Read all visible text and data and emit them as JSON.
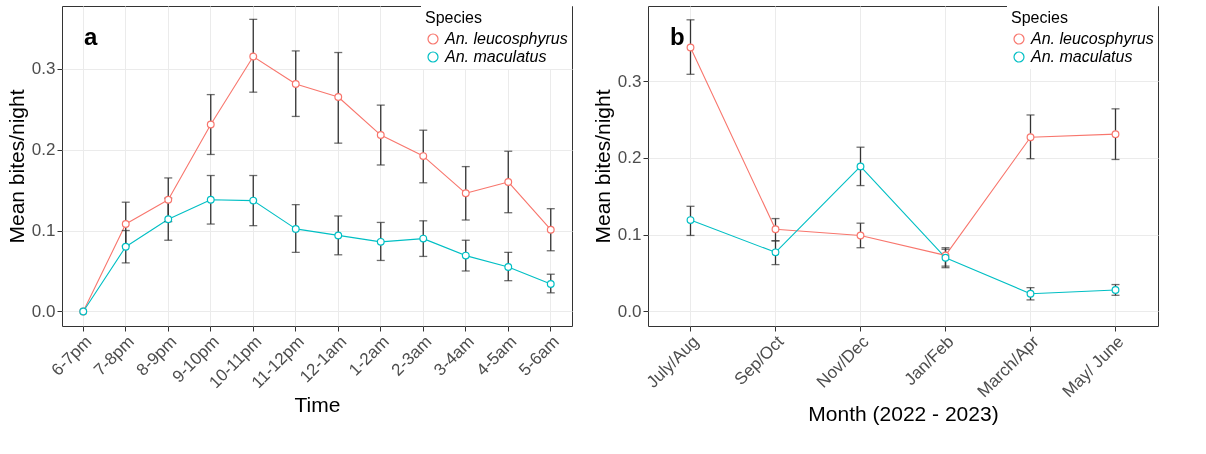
{
  "chart_data": [
    {
      "type": "line",
      "annotations": [
        "a"
      ],
      "xlabel": "Time",
      "ylabel": "Mean bites/night",
      "legend_title": "Species",
      "legend": "top right",
      "grid": true,
      "marker": "circle",
      "line_style": "solid",
      "categories": [
        "6-7pm",
        "7-8pm",
        "8-9pm",
        "9-10pm",
        "10-11pm",
        "11-12pm",
        "12-1am",
        "1-2am",
        "2-3am",
        "3-4am",
        "4-5am",
        "5-6am"
      ],
      "ylim": [
        -0.018,
        0.3775
      ],
      "yticks": [
        {
          "value": 0,
          "label": "0.0"
        },
        0.1,
        0.2,
        0.3
      ],
      "series": [
        {
          "name": "An. leucosphyrus",
          "color": "#f8766d",
          "values": [
            0,
            0.108,
            0.138,
            0.231,
            0.315,
            0.281,
            0.265,
            0.218,
            0.192,
            0.146,
            0.16,
            0.101
          ],
          "errors": [
            null,
            [
              0.081,
              0.135
            ],
            [
              0.111,
              0.165
            ],
            [
              0.194,
              0.268
            ],
            [
              0.271,
              0.361
            ],
            [
              0.241,
              0.322
            ],
            [
              0.208,
              0.32
            ],
            [
              0.181,
              0.255
            ],
            [
              0.159,
              0.224
            ],
            [
              0.113,
              0.179
            ],
            [
              0.122,
              0.198
            ],
            [
              0.075,
              0.127
            ]
          ]
        },
        {
          "name": "An. maculatus",
          "color": "#00bfc4",
          "values": [
            0,
            0.08,
            0.114,
            0.138,
            0.137,
            0.102,
            0.094,
            0.086,
            0.09,
            0.069,
            0.055,
            0.034
          ],
          "errors": [
            null,
            [
              0.06,
              0.1
            ],
            [
              0.088,
              0.14
            ],
            [
              0.108,
              0.168
            ],
            [
              0.106,
              0.168
            ],
            [
              0.073,
              0.132
            ],
            [
              0.07,
              0.118
            ],
            [
              0.063,
              0.11
            ],
            [
              0.068,
              0.112
            ],
            [
              0.05,
              0.088
            ],
            [
              0.038,
              0.073
            ],
            [
              0.023,
              0.046
            ]
          ]
        }
      ]
    },
    {
      "type": "line",
      "annotations": [
        "b"
      ],
      "xlabel": "Month (2022 - 2023)",
      "ylabel": "Mean bites/night",
      "legend_title": "Species",
      "legend": "top right",
      "grid": true,
      "marker": "circle",
      "line_style": "solid",
      "categories": [
        "July/Aug",
        "Sep/Oct",
        "Nov/Dec",
        "Jan/Feb",
        "March/Apr",
        "May/ June"
      ],
      "ylim": [
        -0.019,
        0.398
      ],
      "yticks": [
        {
          "value": 0,
          "label": "0.0"
        },
        0.1,
        0.2,
        0.3
      ],
      "series": [
        {
          "name": "An. leucosphyrus",
          "color": "#f8766d",
          "values": [
            0.344,
            0.107,
            0.099,
            0.073,
            0.227,
            0.231
          ],
          "errors": [
            [
              0.309,
              0.38
            ],
            [
              0.092,
              0.121
            ],
            [
              0.083,
              0.115
            ],
            [
              0.057,
              0.083
            ],
            [
              0.199,
              0.256
            ],
            [
              0.198,
              0.264
            ]
          ]
        },
        {
          "name": "An. maculatus",
          "color": "#00bfc4",
          "values": [
            0.119,
            0.077,
            0.189,
            0.07,
            0.023,
            0.028
          ],
          "errors": [
            [
              0.099,
              0.137
            ],
            [
              0.061,
              0.092
            ],
            [
              0.164,
              0.214
            ],
            [
              0.059,
              0.081
            ],
            [
              0.015,
              0.031
            ],
            [
              0.021,
              0.035
            ]
          ]
        }
      ]
    }
  ]
}
